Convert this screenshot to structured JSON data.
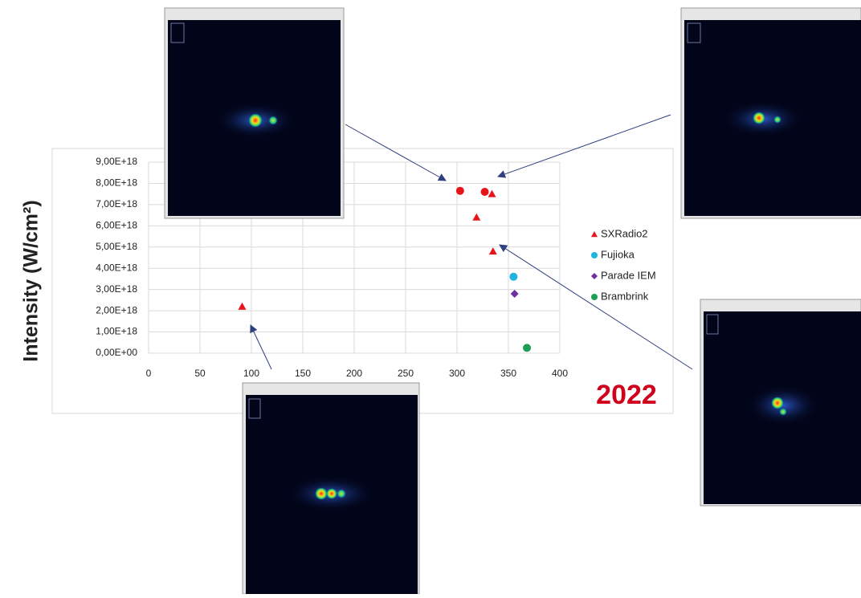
{
  "chart_data": {
    "type": "scatter",
    "y_label": "Intensity (W/cm²)",
    "annotation": "2022",
    "xlim": [
      0,
      400
    ],
    "xticks": [
      0,
      50,
      100,
      150,
      200,
      250,
      300,
      350,
      400
    ],
    "ylim": [
      0,
      9000000000000000000
    ],
    "yticks": [
      {
        "value": 0,
        "label": "0,00E+00"
      },
      {
        "value": 1000000000000000000,
        "label": "1,00E+18"
      },
      {
        "value": 2000000000000000000,
        "label": "2,00E+18"
      },
      {
        "value": 3000000000000000000,
        "label": "3,00E+18"
      },
      {
        "value": 4000000000000000000,
        "label": "4,00E+18"
      },
      {
        "value": 5000000000000000000,
        "label": "5,00E+18"
      },
      {
        "value": 6000000000000000000,
        "label": "6,00E+18"
      },
      {
        "value": 7000000000000000000,
        "label": "7,00E+18"
      },
      {
        "value": 8000000000000000000,
        "label": "8,00E+18"
      },
      {
        "value": 9000000000000000000,
        "label": "9,00E+18"
      }
    ],
    "grid": true,
    "legend": "right",
    "series": [
      {
        "name": "SXRadio2",
        "color": "#e8141b",
        "marker": "triangle",
        "x": [
          91,
          319,
          334,
          335,
          303,
          327
        ],
        "values": [
          2200000000000000000,
          6400000000000000000,
          7500000000000000000,
          4800000000000000000,
          7650000000000000000,
          7600000000000000000
        ],
        "markers": [
          "triangle",
          "triangle",
          "triangle",
          "triangle",
          "circle",
          "circle"
        ]
      },
      {
        "name": "Fujioka",
        "color": "#1fb3e0",
        "marker": "circle",
        "x": [
          355
        ],
        "values": [
          3600000000000000000
        ]
      },
      {
        "name": "Parade IEM",
        "color": "#7030a0",
        "marker": "diamond",
        "x": [
          356
        ],
        "values": [
          2800000000000000000
        ]
      },
      {
        "name": "Brambrink",
        "color": "#1d9e55",
        "marker": "circle",
        "x": [
          368
        ],
        "values": [
          250000000000000000
        ]
      }
    ]
  }
}
